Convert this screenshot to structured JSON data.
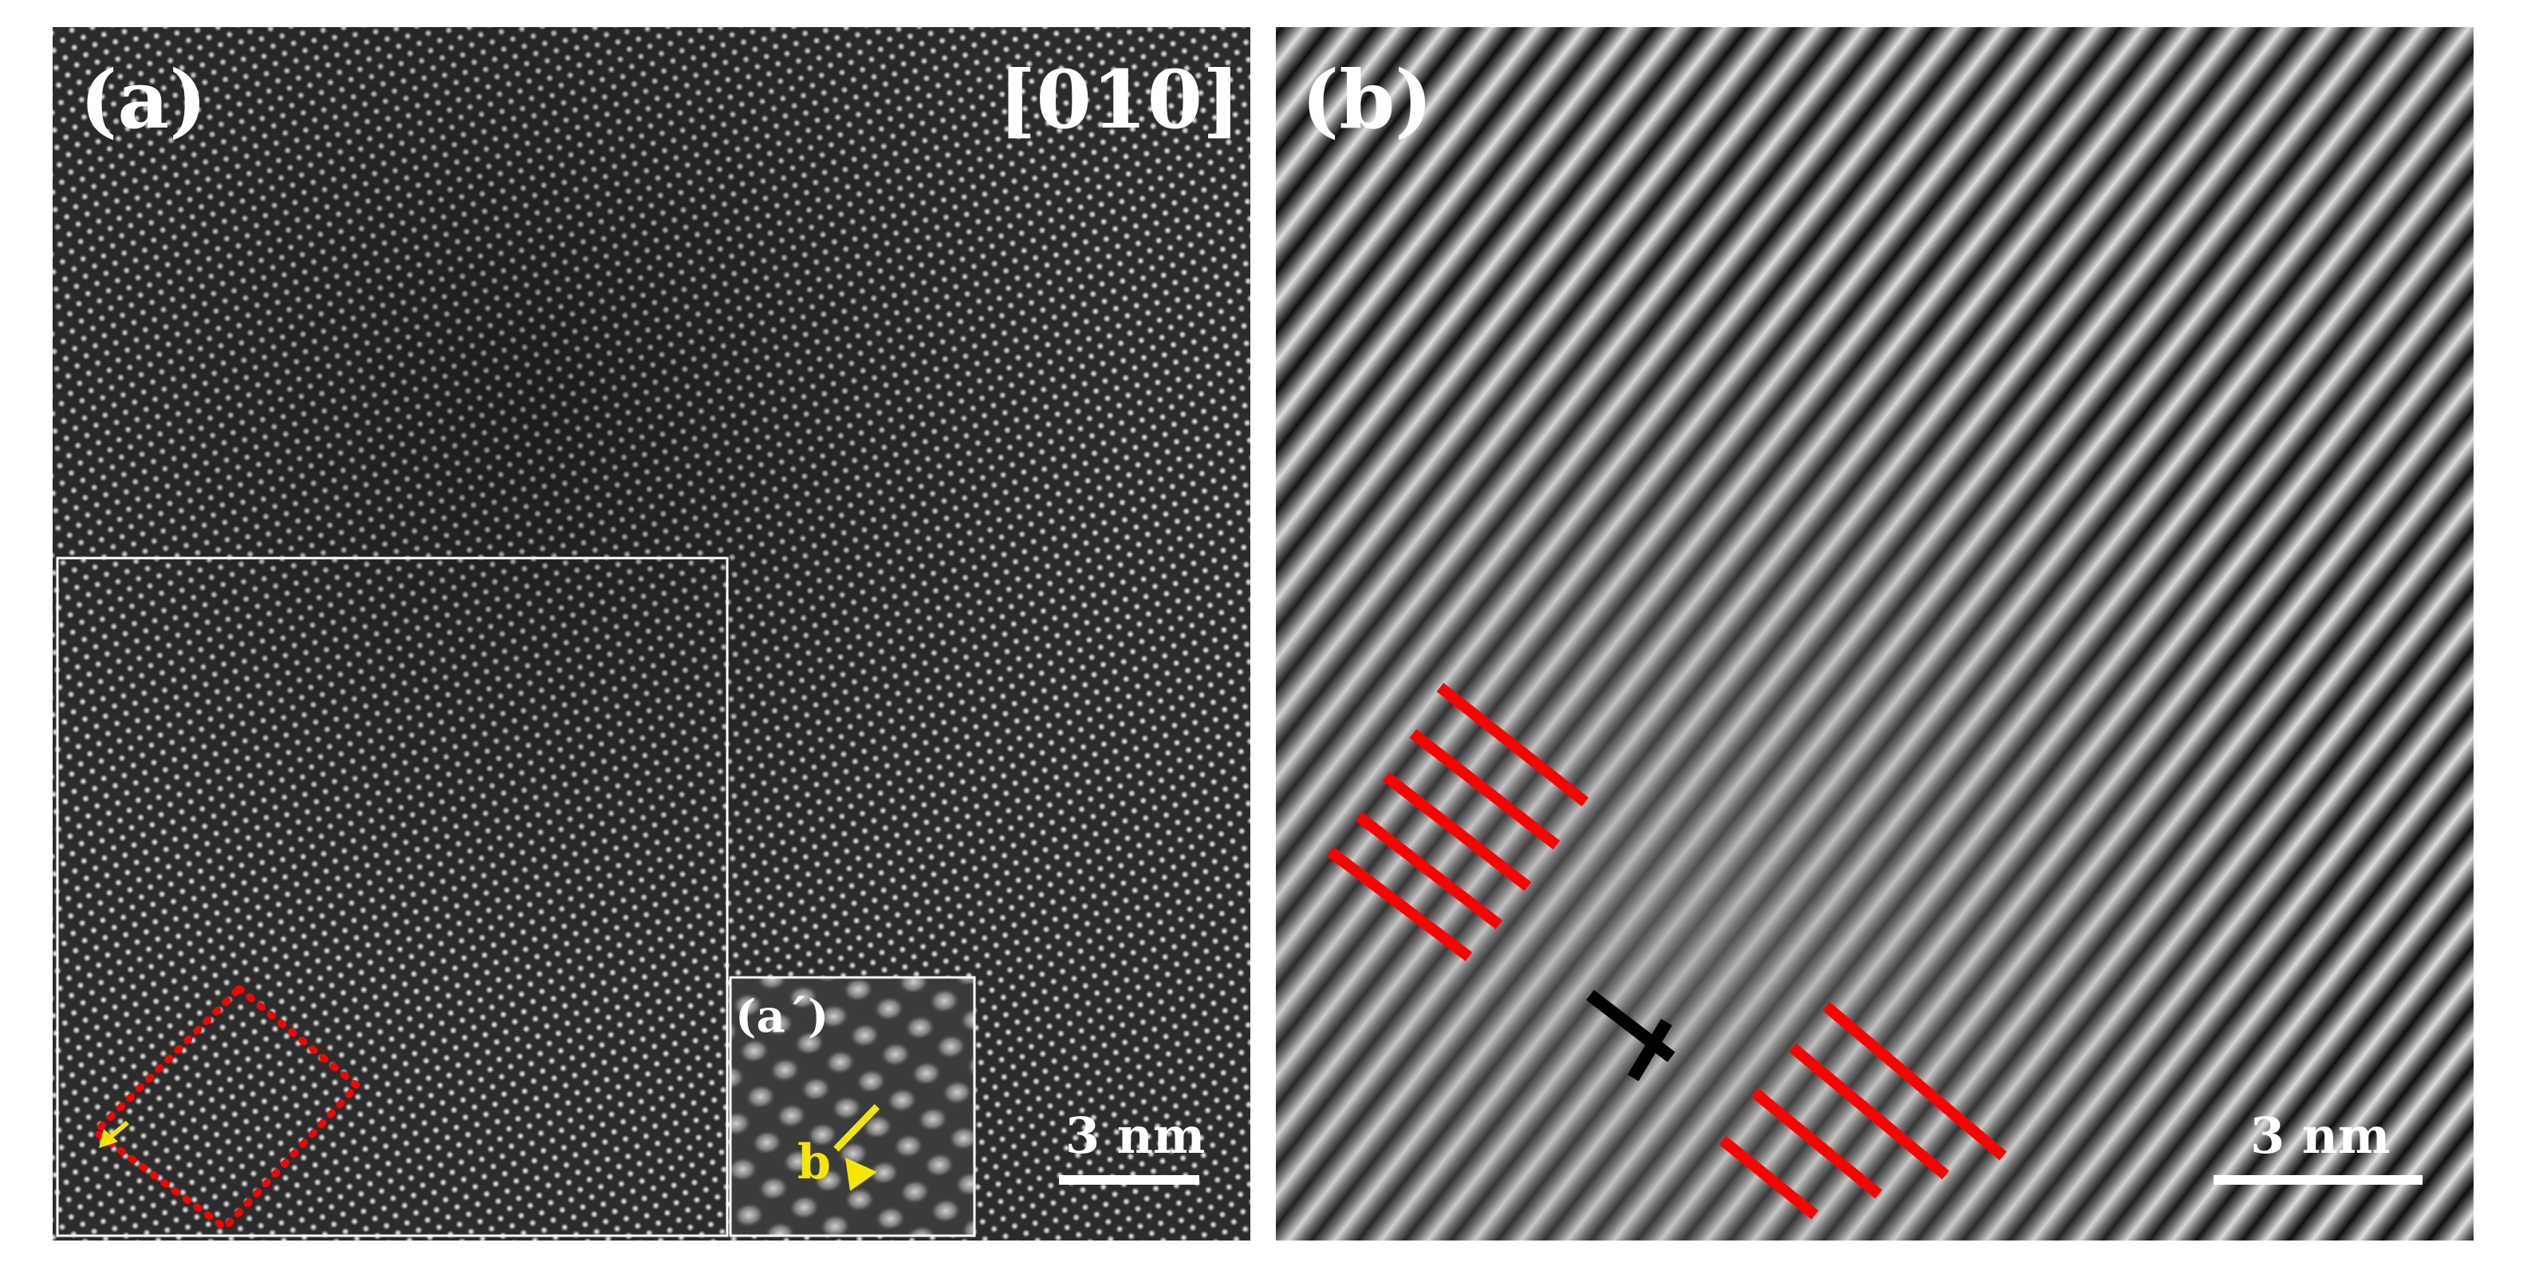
{
  "panels": [
    {
      "label": "(a)",
      "zone_axis": "[010]",
      "scale_bar": "3 nm",
      "inset": {
        "label": "(a´)",
        "burgers_label": "b"
      }
    },
    {
      "label": "(b)",
      "scale_bar": "3 nm"
    }
  ],
  "colors": {
    "lattice_background": "#2a2a2a",
    "fringe_light": "#d8d8d8",
    "fringe_dark": "#101010",
    "marker_lines": "#ff0000",
    "arrow": "#f5e600",
    "dislocation_symbol": "#000000",
    "frame": "#ffffff"
  },
  "icons": {
    "dislocation": "edge-dislocation-symbol",
    "burgers_arrow": "arrow-icon"
  }
}
